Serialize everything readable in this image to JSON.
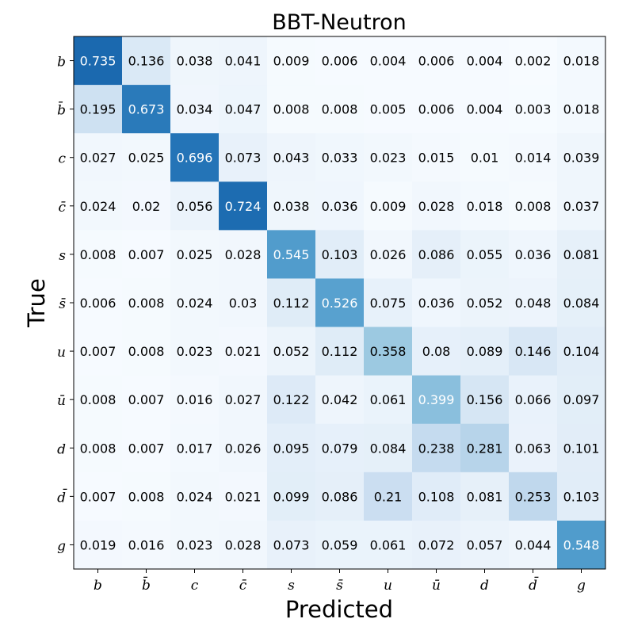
{
  "chart_data": {
    "type": "heatmap",
    "title": "BBT-Neutron",
    "xlabel": "Predicted",
    "ylabel": "True",
    "x_categories": [
      "b",
      "b̄",
      "c",
      "c̄",
      "s",
      "s̄",
      "u",
      "ū",
      "d",
      "d̄",
      "g"
    ],
    "y_categories": [
      "b",
      "b̄",
      "c",
      "c̄",
      "s",
      "s̄",
      "u",
      "ū",
      "d",
      "d̄",
      "g"
    ],
    "values": [
      [
        "0.735",
        "0.136",
        "0.038",
        "0.041",
        "0.009",
        "0.006",
        "0.004",
        "0.006",
        "0.004",
        "0.002",
        "0.018"
      ],
      [
        "0.195",
        "0.673",
        "0.034",
        "0.047",
        "0.008",
        "0.008",
        "0.005",
        "0.006",
        "0.004",
        "0.003",
        "0.018"
      ],
      [
        "0.027",
        "0.025",
        "0.696",
        "0.073",
        "0.043",
        "0.033",
        "0.023",
        "0.015",
        "0.01",
        "0.014",
        "0.039"
      ],
      [
        "0.024",
        "0.02",
        "0.056",
        "0.724",
        "0.038",
        "0.036",
        "0.009",
        "0.028",
        "0.018",
        "0.008",
        "0.037"
      ],
      [
        "0.008",
        "0.007",
        "0.025",
        "0.028",
        "0.545",
        "0.103",
        "0.026",
        "0.086",
        "0.055",
        "0.036",
        "0.081"
      ],
      [
        "0.006",
        "0.008",
        "0.024",
        "0.03",
        "0.112",
        "0.526",
        "0.075",
        "0.036",
        "0.052",
        "0.048",
        "0.084"
      ],
      [
        "0.007",
        "0.008",
        "0.023",
        "0.021",
        "0.052",
        "0.112",
        "0.358",
        "0.08",
        "0.089",
        "0.146",
        "0.104"
      ],
      [
        "0.008",
        "0.007",
        "0.016",
        "0.027",
        "0.122",
        "0.042",
        "0.061",
        "0.399",
        "0.156",
        "0.066",
        "0.097"
      ],
      [
        "0.008",
        "0.007",
        "0.017",
        "0.026",
        "0.095",
        "0.079",
        "0.084",
        "0.238",
        "0.281",
        "0.063",
        "0.101"
      ],
      [
        "0.007",
        "0.008",
        "0.024",
        "0.021",
        "0.099",
        "0.086",
        "0.21",
        "0.108",
        "0.081",
        "0.253",
        "0.103"
      ],
      [
        "0.019",
        "0.016",
        "0.023",
        "0.028",
        "0.073",
        "0.059",
        "0.061",
        "0.072",
        "0.057",
        "0.044",
        "0.548"
      ]
    ],
    "value_range": [
      0,
      0.735
    ],
    "colormap": "Blues",
    "grid": false,
    "legend": "none"
  }
}
